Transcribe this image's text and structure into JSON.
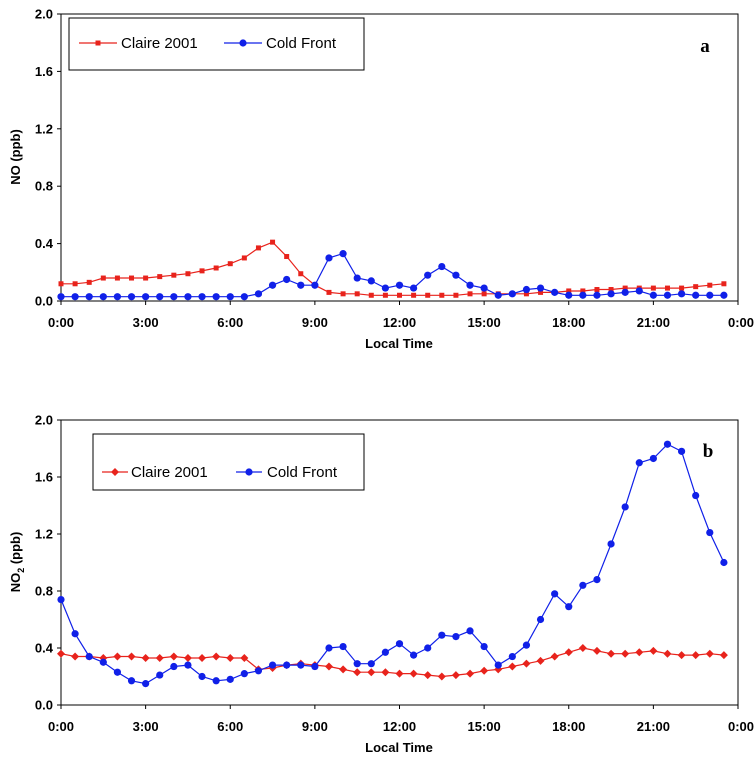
{
  "chart_data": [
    {
      "type": "line",
      "panel_label": "a",
      "xlabel": "Local Time",
      "ylabel": "NO (ppb)",
      "ylim": [
        0,
        2.0
      ],
      "yticks": [
        "0.0",
        "0.4",
        "0.8",
        "1.2",
        "1.6",
        "2.0"
      ],
      "xticks": [
        "0:00",
        "3:00",
        "6:00",
        "9:00",
        "12:00",
        "15:00",
        "18:00",
        "21:00",
        "0:00"
      ],
      "xlim_hours": [
        0,
        24
      ],
      "x_hours": [
        0,
        0.5,
        1,
        1.5,
        2,
        2.5,
        3,
        3.5,
        4,
        4.5,
        5,
        5.5,
        6,
        6.5,
        7,
        7.5,
        8,
        8.5,
        9,
        9.5,
        10,
        10.5,
        11,
        11.5,
        12,
        12.5,
        13,
        13.5,
        14,
        14.5,
        15,
        15.5,
        16,
        16.5,
        17,
        17.5,
        18,
        18.5,
        19,
        19.5,
        20,
        20.5,
        21,
        21.5,
        22,
        22.5,
        23,
        23.5
      ],
      "legend_placement": "top-left",
      "series": [
        {
          "name": "Claire 2001",
          "color": "#e8231c",
          "marker": "square",
          "values": [
            0.12,
            0.12,
            0.13,
            0.16,
            0.16,
            0.16,
            0.16,
            0.17,
            0.18,
            0.19,
            0.21,
            0.23,
            0.26,
            0.3,
            0.37,
            0.41,
            0.31,
            0.19,
            0.11,
            0.06,
            0.05,
            0.05,
            0.04,
            0.04,
            0.04,
            0.04,
            0.04,
            0.04,
            0.04,
            0.05,
            0.05,
            0.05,
            0.05,
            0.05,
            0.06,
            0.06,
            0.07,
            0.07,
            0.08,
            0.08,
            0.09,
            0.09,
            0.09,
            0.09,
            0.09,
            0.1,
            0.11,
            0.12
          ]
        },
        {
          "name": "Cold Front",
          "color": "#1020e8",
          "marker": "circle",
          "values": [
            0.03,
            0.03,
            0.03,
            0.03,
            0.03,
            0.03,
            0.03,
            0.03,
            0.03,
            0.03,
            0.03,
            0.03,
            0.03,
            0.03,
            0.05,
            0.11,
            0.15,
            0.11,
            0.11,
            0.3,
            0.33,
            0.16,
            0.14,
            0.09,
            0.11,
            0.09,
            0.18,
            0.24,
            0.18,
            0.11,
            0.09,
            0.04,
            0.05,
            0.08,
            0.09,
            0.06,
            0.04,
            0.04,
            0.04,
            0.05,
            0.06,
            0.07,
            0.04,
            0.04,
            0.05,
            0.04,
            0.04,
            0.04
          ]
        }
      ]
    },
    {
      "type": "line",
      "panel_label": "b",
      "xlabel": "Local Time",
      "ylabel_main": "NO",
      "ylabel_sub": "2",
      "ylabel_tail": " (ppb)",
      "ylim": [
        0,
        2.0
      ],
      "yticks": [
        "0.0",
        "0.4",
        "0.8",
        "1.2",
        "1.6",
        "2.0"
      ],
      "xticks": [
        "0:00",
        "3:00",
        "6:00",
        "9:00",
        "12:00",
        "15:00",
        "18:00",
        "21:00",
        "0:00"
      ],
      "xlim_hours": [
        0,
        24
      ],
      "x_hours": [
        0,
        0.5,
        1,
        1.5,
        2,
        2.5,
        3,
        3.5,
        4,
        4.5,
        5,
        5.5,
        6,
        6.5,
        7,
        7.5,
        8,
        8.5,
        9,
        9.5,
        10,
        10.5,
        11,
        11.5,
        12,
        12.5,
        13,
        13.5,
        14,
        14.5,
        15,
        15.5,
        16,
        16.5,
        17,
        17.5,
        18,
        18.5,
        19,
        19.5,
        20,
        20.5,
        21,
        21.5,
        22,
        22.5,
        23,
        23.5
      ],
      "legend_placement": "top-left",
      "series": [
        {
          "name": "Claire 2001",
          "color": "#e8231c",
          "marker": "diamond",
          "values": [
            0.36,
            0.34,
            0.34,
            0.33,
            0.34,
            0.34,
            0.33,
            0.33,
            0.34,
            0.33,
            0.33,
            0.34,
            0.33,
            0.33,
            0.25,
            0.26,
            0.28,
            0.29,
            0.28,
            0.27,
            0.25,
            0.23,
            0.23,
            0.23,
            0.22,
            0.22,
            0.21,
            0.2,
            0.21,
            0.22,
            0.24,
            0.25,
            0.27,
            0.29,
            0.31,
            0.34,
            0.37,
            0.4,
            0.38,
            0.36,
            0.36,
            0.37,
            0.38,
            0.36,
            0.35,
            0.35,
            0.36,
            0.35
          ]
        },
        {
          "name": "Cold Front",
          "color": "#1020e8",
          "marker": "circle",
          "values": [
            0.74,
            0.5,
            0.34,
            0.3,
            0.23,
            0.17,
            0.15,
            0.21,
            0.27,
            0.28,
            0.2,
            0.17,
            0.18,
            0.22,
            0.24,
            0.28,
            0.28,
            0.28,
            0.27,
            0.4,
            0.41,
            0.29,
            0.29,
            0.37,
            0.43,
            0.35,
            0.4,
            0.49,
            0.48,
            0.52,
            0.41,
            0.28,
            0.34,
            0.42,
            0.6,
            0.78,
            0.69,
            0.84,
            0.88,
            1.13,
            1.39,
            1.7,
            1.73,
            1.83,
            1.78,
            1.47,
            1.21,
            1.0
          ]
        }
      ]
    }
  ]
}
